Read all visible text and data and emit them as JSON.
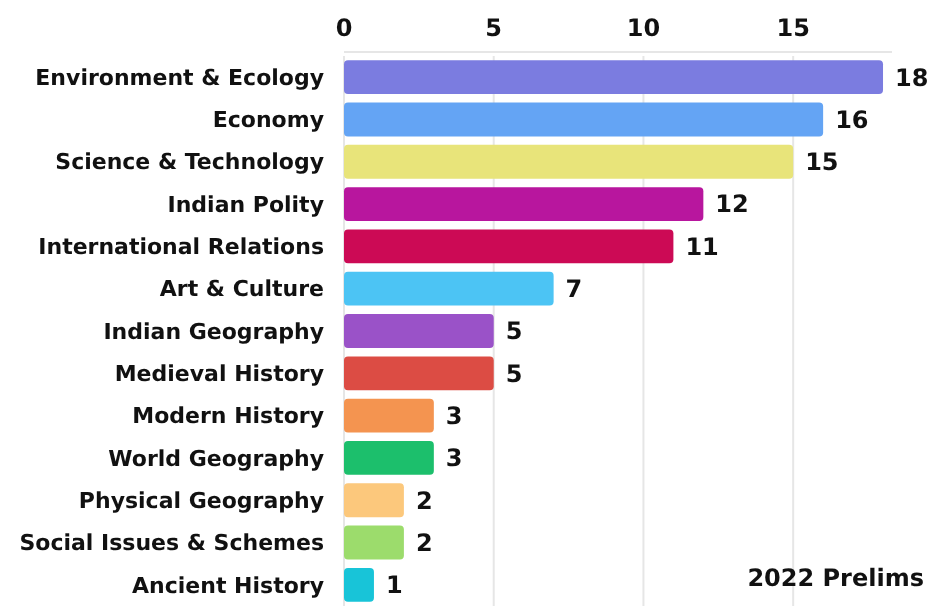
{
  "chart_data": {
    "type": "bar",
    "orientation": "horizontal",
    "categories": [
      "Environment & Ecology",
      "Economy",
      "Science & Technology",
      "Indian Polity",
      "International Relations",
      "Art & Culture",
      "Indian Geography",
      "Medieval History",
      "Modern History",
      "World Geography",
      "Physical Geography",
      "Social Issues & Schemes",
      "Ancient History"
    ],
    "values": [
      18,
      16,
      15,
      12,
      11,
      7,
      5,
      5,
      3,
      3,
      2,
      2,
      1
    ],
    "colors": [
      "#7b7ce0",
      "#64a4f4",
      "#e8e47a",
      "#b8169e",
      "#cc0a55",
      "#4cc4f4",
      "#9a52c8",
      "#dc4c44",
      "#f49450",
      "#1cbf6c",
      "#fcc87c",
      "#9cdc6c",
      "#18c4d8"
    ],
    "xlim": [
      0,
      18.3
    ],
    "xticks": [
      0,
      5,
      10,
      15
    ],
    "grid": "x",
    "data_labels": true,
    "annotations": [
      "2022 Prelims"
    ]
  }
}
